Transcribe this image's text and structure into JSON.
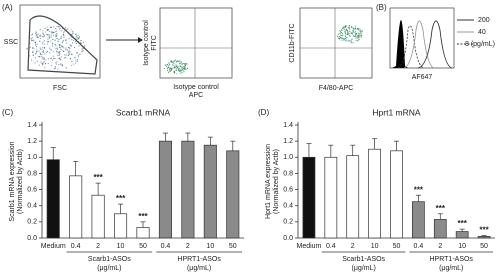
{
  "figure": {
    "panel_a": {
      "label": "(A)",
      "plot1": {
        "y": "SSC",
        "x": "FSC"
      },
      "plot2": {
        "y": [
          "Isotype control",
          "FITC"
        ],
        "x": [
          "Isotype control",
          "APC"
        ]
      },
      "plot3": {
        "y": "CD11b-FITC",
        "x": "F4/80-APC"
      }
    },
    "panel_b": {
      "label": "(B)",
      "x": "AF647",
      "legend": [
        "200",
        "40",
        "8 (pg/mL)"
      ]
    }
  },
  "chart_data": [
    {
      "type": "bar",
      "panel_label": "(C)",
      "title": "Scarb1 mRNA",
      "y_label": [
        "Scarb1 mRNA expression",
        "(Normalized by Actb)"
      ],
      "categories": [
        "Medium",
        "0.4",
        "2",
        "10",
        "50",
        "0.4",
        "2",
        "10",
        "50"
      ],
      "values": [
        0.97,
        0.77,
        0.53,
        0.3,
        0.13,
        1.2,
        1.2,
        1.15,
        1.08
      ],
      "errors": [
        0.15,
        0.18,
        0.15,
        0.12,
        0.07,
        0.1,
        0.1,
        0.1,
        0.12
      ],
      "colors": [
        "#111111",
        "#ffffff",
        "#ffffff",
        "#ffffff",
        "#ffffff",
        "#8a8a8a",
        "#8a8a8a",
        "#8a8a8a",
        "#8a8a8a"
      ],
      "significance": [
        null,
        null,
        "***",
        "***",
        "***",
        null,
        null,
        null,
        null
      ],
      "groups": [
        {
          "label": "Scarb1-ASOs",
          "unit": "(μg/mL)"
        },
        {
          "label": "HPRT1-ASOs",
          "unit": "(μg/mL)"
        }
      ],
      "ylim": [
        0,
        1.4
      ],
      "yticks": [
        {
          "value": 0,
          "label": "0.0"
        },
        0.2,
        0.4,
        0.6,
        0.8,
        {
          "value": 1,
          "label": "1.0"
        },
        1.2,
        1.4
      ]
    },
    {
      "type": "bar",
      "panel_label": "(D)",
      "title": "Hprt1 mRNA",
      "y_label": [
        "Hprt1 mRNA expression",
        "(Normalized by Actb)"
      ],
      "categories": [
        "Medium",
        "0.4",
        "2",
        "10",
        "50",
        "0.4",
        "2",
        "10",
        "50"
      ],
      "values": [
        1.0,
        1.0,
        1.02,
        1.1,
        1.08,
        0.45,
        0.23,
        0.08,
        0.02
      ],
      "errors": [
        0.17,
        0.15,
        0.13,
        0.13,
        0.12,
        0.08,
        0.07,
        0.03,
        0.01
      ],
      "colors": [
        "#111111",
        "#ffffff",
        "#ffffff",
        "#ffffff",
        "#ffffff",
        "#8a8a8a",
        "#8a8a8a",
        "#8a8a8a",
        "#8a8a8a"
      ],
      "significance": [
        null,
        null,
        null,
        null,
        null,
        "***",
        "***",
        "***",
        "***"
      ],
      "groups": [
        {
          "label": "Scarb1-ASOs",
          "unit": "(μg/mL)"
        },
        {
          "label": "HPRT1-ASOs",
          "unit": "(μg/mL)"
        }
      ],
      "ylim": [
        0,
        1.4
      ],
      "yticks": [
        {
          "value": 0,
          "label": "0.0"
        },
        0.2,
        0.4,
        0.6,
        0.8,
        {
          "value": 1,
          "label": "1.0"
        },
        1.2,
        1.4
      ]
    }
  ]
}
